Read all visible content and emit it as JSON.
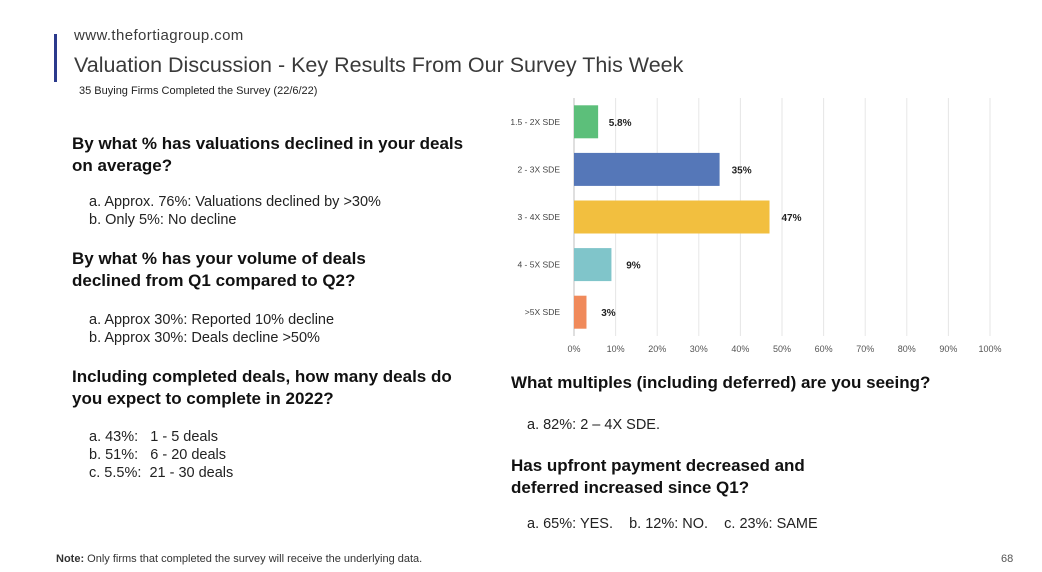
{
  "header": {
    "site_url": "www.thefortiagroup.com",
    "title": "Valuation Discussion - Key Results From Our Survey This Week",
    "subtitle": "35 Buying Firms Completed the Survey (22/6/22)"
  },
  "questions": [
    {
      "text": "By what % has valuations declined in your deals on average?",
      "answers": [
        "a. Approx. 76%: Valuations declined by >30%",
        "b. Only 5%: No decline"
      ]
    },
    {
      "text": "By what % has your volume of deals declined from Q1 compared to Q2?",
      "answers": [
        "a. Approx 30%: Reported 10% decline",
        "b. Approx 30%: Deals decline >50%"
      ]
    },
    {
      "text": "Including completed deals, how many deals do you expect to complete in 2022?",
      "answers": [
        "a. 43%:   1 - 5 deals",
        "b. 51%:   6 - 20 deals",
        "c. 5.5%:  21 - 30 deals"
      ]
    },
    {
      "text": "What multiples (including deferred) are you seeing?",
      "answers": [
        "a. 82%: 2 – 4X SDE."
      ]
    },
    {
      "text": "Has upfront payment decreased and deferred increased since Q1?",
      "answers": [
        "a. 65%: YES.    b. 12%: NO.    c. 23%: SAME"
      ]
    }
  ],
  "chart_data": {
    "type": "bar",
    "orientation": "horizontal",
    "categories": [
      "1.5 - 2X SDE",
      "2 - 3X SDE",
      "3 - 4X SDE",
      "4 - 5X SDE",
      ">5X SDE"
    ],
    "values": [
      5.8,
      35,
      47,
      9,
      3
    ],
    "data_labels": [
      "5.8%",
      "35%",
      "47%",
      "9%",
      "3%"
    ],
    "colors": [
      "#5cbf7a",
      "#5577b8",
      "#f2bf3f",
      "#80c5ca",
      "#f08a5b"
    ],
    "xlim": [
      0,
      100
    ],
    "xticks": [
      0,
      10,
      20,
      30,
      40,
      50,
      60,
      70,
      80,
      90,
      100
    ],
    "xtick_labels": [
      "0%",
      "10%",
      "20%",
      "30%",
      "40%",
      "50%",
      "60%",
      "70%",
      "80%",
      "90%",
      "100%"
    ],
    "grid": true,
    "legend": "none"
  },
  "footer": {
    "note_label": "Note:",
    "note_text": " Only firms that completed the survey will receive the underlying data.",
    "page_number": "68"
  }
}
